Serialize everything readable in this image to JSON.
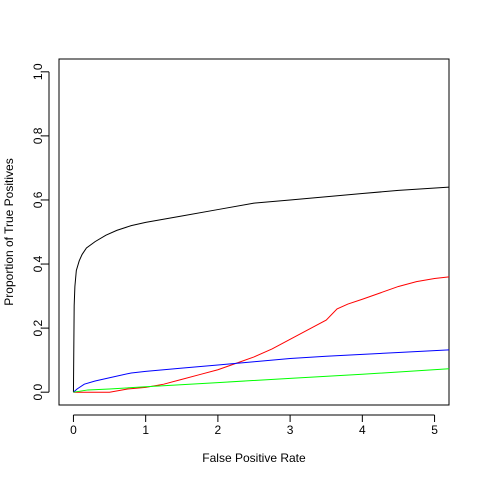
{
  "chart_data": {
    "type": "line",
    "title": "",
    "xlabel": "False Positive Rate",
    "ylabel": "Proportion of True Positives",
    "xlim": [
      -0.2,
      5.2
    ],
    "ylim": [
      -0.04,
      1.04
    ],
    "grid": false,
    "x_ticks": [
      0,
      1,
      2,
      3,
      4,
      5
    ],
    "x_tick_labels": [
      "0",
      "1",
      "2",
      "3",
      "4",
      "5"
    ],
    "y_ticks": [
      0.0,
      0.2,
      0.4,
      0.6,
      0.8,
      1.0
    ],
    "y_tick_labels": [
      "0.0",
      "0.2",
      "0.4",
      "0.6",
      "0.8",
      "1.0"
    ],
    "series": [
      {
        "color": "#000000",
        "points": [
          [
            0,
            0
          ],
          [
            0.01,
            0.27
          ],
          [
            0.02,
            0.33
          ],
          [
            0.04,
            0.38
          ],
          [
            0.08,
            0.41
          ],
          [
            0.12,
            0.43
          ],
          [
            0.18,
            0.45
          ],
          [
            0.3,
            0.47
          ],
          [
            0.45,
            0.49
          ],
          [
            0.6,
            0.505
          ],
          [
            0.8,
            0.52
          ],
          [
            1.0,
            0.53
          ],
          [
            1.5,
            0.55
          ],
          [
            2.0,
            0.57
          ],
          [
            2.5,
            0.59
          ],
          [
            3.0,
            0.6
          ],
          [
            3.5,
            0.61
          ],
          [
            4.0,
            0.62
          ],
          [
            4.5,
            0.63
          ],
          [
            5.2,
            0.64
          ]
        ]
      },
      {
        "color": "#ff0000",
        "points": [
          [
            0,
            0
          ],
          [
            0.5,
            0.0
          ],
          [
            0.75,
            0.01
          ],
          [
            1.0,
            0.015
          ],
          [
            1.25,
            0.025
          ],
          [
            1.5,
            0.04
          ],
          [
            1.75,
            0.055
          ],
          [
            2.0,
            0.07
          ],
          [
            2.25,
            0.09
          ],
          [
            2.5,
            0.11
          ],
          [
            2.75,
            0.135
          ],
          [
            3.0,
            0.165
          ],
          [
            3.25,
            0.195
          ],
          [
            3.5,
            0.225
          ],
          [
            3.65,
            0.26
          ],
          [
            3.8,
            0.275
          ],
          [
            4.0,
            0.29
          ],
          [
            4.25,
            0.31
          ],
          [
            4.5,
            0.33
          ],
          [
            4.75,
            0.345
          ],
          [
            5.0,
            0.355
          ],
          [
            5.2,
            0.36
          ]
        ]
      },
      {
        "color": "#0000ff",
        "points": [
          [
            0,
            0
          ],
          [
            0.05,
            0.01
          ],
          [
            0.15,
            0.025
          ],
          [
            0.3,
            0.035
          ],
          [
            0.5,
            0.045
          ],
          [
            0.8,
            0.06
          ],
          [
            1.0,
            0.065
          ],
          [
            1.5,
            0.075
          ],
          [
            2.0,
            0.085
          ],
          [
            2.5,
            0.095
          ],
          [
            3.0,
            0.105
          ],
          [
            3.5,
            0.112
          ],
          [
            4.0,
            0.118
          ],
          [
            4.5,
            0.124
          ],
          [
            5.2,
            0.132
          ]
        ]
      },
      {
        "color": "#00ff00",
        "points": [
          [
            0,
            0
          ],
          [
            0.2,
            0.007
          ],
          [
            0.5,
            0.01
          ],
          [
            1.0,
            0.017
          ],
          [
            2.0,
            0.03
          ],
          [
            3.0,
            0.043
          ],
          [
            4.0,
            0.056
          ],
          [
            5.2,
            0.073
          ]
        ]
      }
    ]
  }
}
